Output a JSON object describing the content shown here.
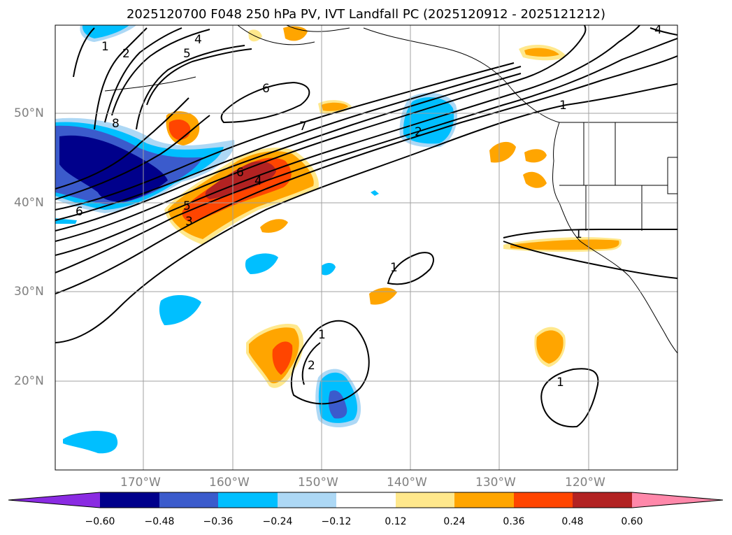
{
  "title": "2025120700 F048 250 hPa PV, IVT Landfall PC (2025120912 - 2025121212)",
  "lat_labels": [
    "50°N",
    "40°N",
    "30°N",
    "20°N"
  ],
  "lon_labels": [
    "170°W",
    "160°W",
    "150°W",
    "140°W",
    "130°W",
    "120°W"
  ],
  "colorbar": {
    "ticks": [
      "−0.60",
      "−0.48",
      "−0.36",
      "−0.24",
      "−0.12",
      "0.12",
      "0.24",
      "0.36",
      "0.48",
      "0.60"
    ],
    "colors": [
      "#8a2be2",
      "#00008b",
      "#3b5bcc",
      "#00bfff",
      "#add8f5",
      "#ffffff",
      "#ffe88c",
      "#ffa500",
      "#ff4500",
      "#b22222",
      "#ff88aa"
    ]
  },
  "contour_labels": [
    "1",
    "2",
    "4",
    "5",
    "6",
    "8",
    "6",
    "7",
    "6",
    "4",
    "5",
    "3",
    "2",
    "1",
    "1",
    "2",
    "1",
    "1",
    "1",
    "4"
  ],
  "colors": {
    "grid": "#a0a0a0",
    "land": "#000000",
    "contour": "#000000"
  }
}
